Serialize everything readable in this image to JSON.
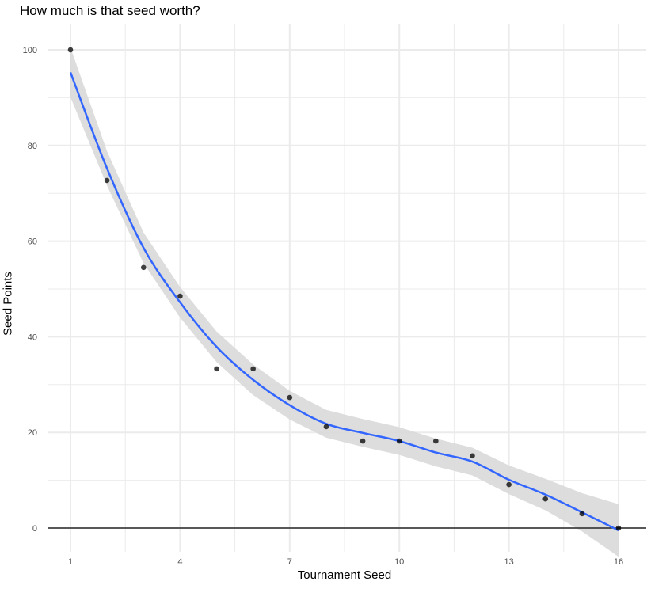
{
  "chart_data": {
    "type": "scatter",
    "title": "How much is that seed worth?",
    "xlabel": "Tournament Seed",
    "ylabel": "Seed Points",
    "xlim": [
      1,
      16
    ],
    "ylim": [
      0,
      100
    ],
    "xticks": [
      1,
      4,
      7,
      10,
      13,
      16
    ],
    "yticks": [
      0,
      20,
      40,
      60,
      80,
      100
    ],
    "grid": true,
    "hline": 0,
    "points": {
      "x": [
        1,
        2,
        3,
        4,
        5,
        6,
        7,
        8,
        9,
        10,
        11,
        12,
        13,
        14,
        15,
        16
      ],
      "y": [
        100,
        72.7,
        54.5,
        48.5,
        33.3,
        33.3,
        27.3,
        21.2,
        18.2,
        18.2,
        18.2,
        15.1,
        9.1,
        6.1,
        3.0,
        0
      ]
    },
    "smooth": {
      "x": [
        1,
        2,
        3,
        4,
        5,
        6,
        7,
        8,
        9,
        10,
        11,
        12,
        13,
        14,
        15,
        16
      ],
      "y": [
        95.3,
        75.2,
        58.6,
        47.2,
        37.9,
        31.0,
        25.7,
        21.8,
        19.9,
        18.2,
        15.8,
        13.9,
        10.1,
        7.0,
        3.3,
        -0.5
      ],
      "ci_halfwidth": [
        5.2,
        3.6,
        3.2,
        3.2,
        3.2,
        3.2,
        3.0,
        2.9,
        2.9,
        2.9,
        2.9,
        2.9,
        3.0,
        3.3,
        4.0,
        5.5
      ]
    },
    "colors": {
      "line": "#3366ff",
      "band": "#d9d9d9",
      "points": "#000000",
      "grid": "#ebebeb"
    }
  }
}
